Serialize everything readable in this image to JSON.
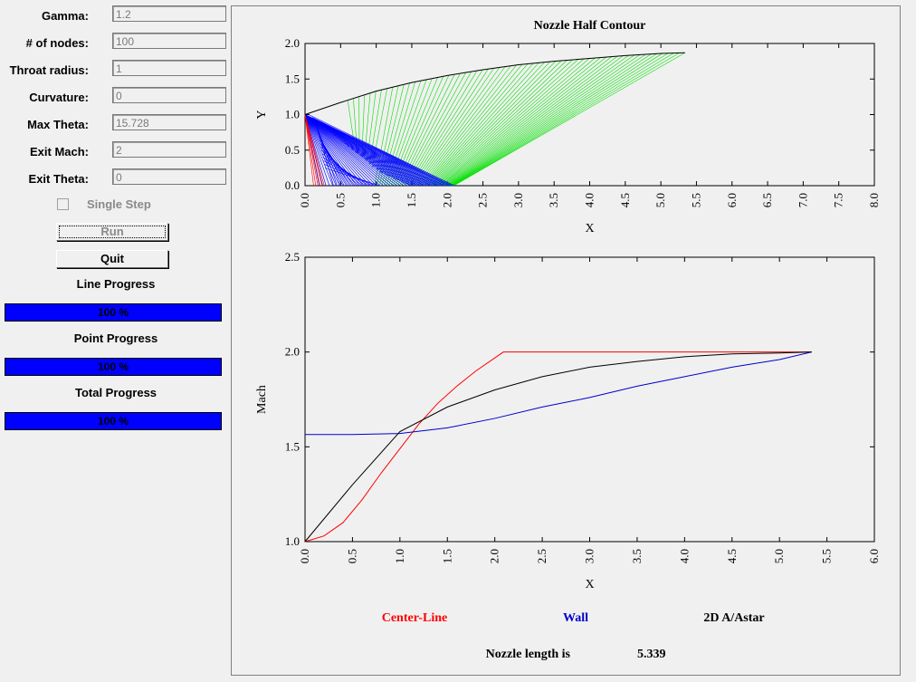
{
  "params": [
    {
      "label": "Gamma:",
      "value": "1.2"
    },
    {
      "label": "# of nodes:",
      "value": "100"
    },
    {
      "label": "Throat radius:",
      "value": "1"
    },
    {
      "label": "Curvature:",
      "value": "0"
    },
    {
      "label": "Max Theta:",
      "value": "15.728"
    },
    {
      "label": "Exit Mach:",
      "value": "2"
    },
    {
      "label": "Exit Theta:",
      "value": "0"
    }
  ],
  "single_step_label": "Single Step",
  "run_label": "Run",
  "quit_label": "Quit",
  "progress": [
    {
      "title": "Line Progress",
      "text": "100 %",
      "fraction": 1.0
    },
    {
      "title": "Point Progress",
      "text": "100 %",
      "fraction": 1.0
    },
    {
      "title": "Total Progress",
      "text": "100 %",
      "fraction": 1.0
    }
  ],
  "footer": {
    "label": "Nozzle length is",
    "value": "5.339"
  },
  "colors": {
    "centerline": "#ff0000",
    "wall": "#0000cc",
    "area": "#000000",
    "characteristics_a": "#00e000",
    "characteristics_b": "#0000ff"
  },
  "chart_data": [
    {
      "type": "line",
      "title": "Nozzle Half Contour",
      "xlabel": "X",
      "ylabel": "Y",
      "xlim": [
        0,
        8
      ],
      "ylim": [
        0,
        2
      ],
      "xticks": [
        "0.0",
        "0.5",
        "1.0",
        "1.5",
        "2.0",
        "2.5",
        "3.0",
        "3.5",
        "4.0",
        "4.5",
        "5.0",
        "5.5",
        "6.0",
        "6.5",
        "7.0",
        "7.5",
        "8.0"
      ],
      "yticks": [
        "0.0",
        "0.5",
        "1.0",
        "1.5",
        "2.0"
      ],
      "series": [
        {
          "color": "#000000",
          "x": [
            0,
            0.5,
            1.0,
            1.5,
            2.0,
            2.5,
            3.0,
            3.5,
            4.0,
            4.5,
            5.0,
            5.339
          ],
          "y": [
            1.0,
            1.17,
            1.33,
            1.45,
            1.55,
            1.63,
            1.7,
            1.75,
            1.79,
            1.83,
            1.86,
            1.87
          ]
        }
      ]
    },
    {
      "type": "line",
      "xlabel": "X",
      "ylabel": "Mach",
      "xlim": [
        0,
        6
      ],
      "ylim": [
        1,
        2.5
      ],
      "xticks": [
        "0.0",
        "0.5",
        "1.0",
        "1.5",
        "2.0",
        "2.5",
        "3.0",
        "3.5",
        "4.0",
        "4.5",
        "5.0",
        "5.5",
        "6.0"
      ],
      "yticks": [
        "1.0",
        "1.5",
        "2.0",
        "2.5"
      ],
      "series": [
        {
          "name": "Center-Line",
          "color": "#ff0000",
          "x": [
            0,
            0.2,
            0.4,
            0.6,
            0.8,
            1.0,
            1.2,
            1.4,
            1.6,
            1.8,
            2.09,
            5.339
          ],
          "y": [
            1.0,
            1.03,
            1.1,
            1.22,
            1.36,
            1.49,
            1.62,
            1.73,
            1.82,
            1.9,
            2.0,
            2.0
          ]
        },
        {
          "name": "Wall",
          "color": "#0000cc",
          "x": [
            0,
            0.5,
            1.0,
            1.5,
            2.0,
            2.5,
            3.0,
            3.5,
            4.0,
            4.5,
            5.0,
            5.339
          ],
          "y": [
            1.565,
            1.565,
            1.57,
            1.6,
            1.65,
            1.71,
            1.76,
            1.82,
            1.87,
            1.92,
            1.96,
            2.0
          ]
        },
        {
          "name": "2D A/Astar",
          "color": "#000000",
          "x": [
            0,
            0.5,
            1.0,
            1.5,
            2.0,
            2.5,
            3.0,
            3.5,
            4.0,
            4.5,
            5.0,
            5.339
          ],
          "y": [
            1.0,
            1.3,
            1.58,
            1.71,
            1.8,
            1.87,
            1.92,
            1.95,
            1.975,
            1.99,
            1.995,
            2.0
          ]
        }
      ]
    }
  ]
}
